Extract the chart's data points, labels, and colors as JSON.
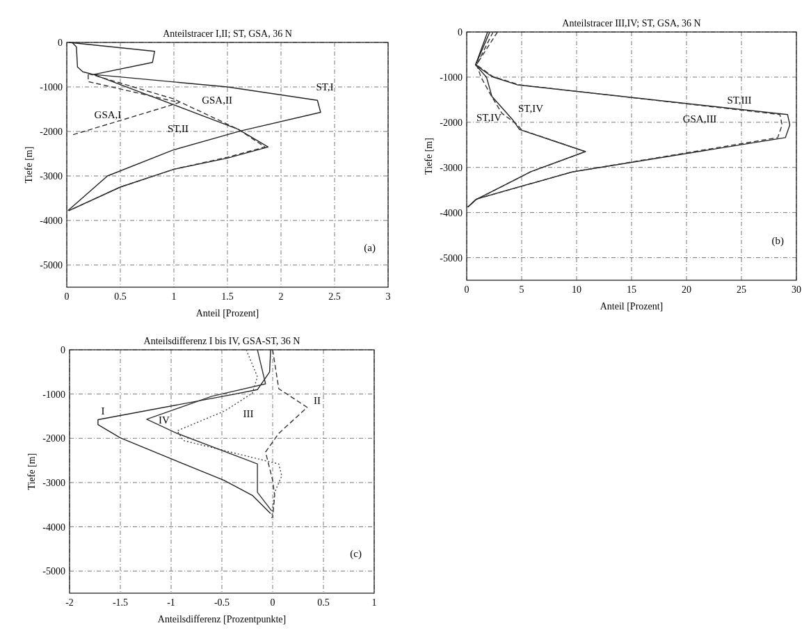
{
  "chart_data": [
    {
      "type": "line",
      "title": "Anteilstracer I,II; ST, GSA, 36 N",
      "xlabel": "Anteil [Prozent]",
      "ylabel": "Tiefe [m]",
      "xlim": [
        0,
        3
      ],
      "xticks": [
        0,
        0.5,
        1,
        1.5,
        2,
        2.5,
        3
      ],
      "ylim": [
        -5500,
        0
      ],
      "yticks": [
        0,
        -1000,
        -2000,
        -3000,
        -4000,
        -5000
      ],
      "grid": true,
      "series": [
        {
          "name": "ST,I",
          "color": "#222222",
          "line_style": "solid",
          "x": [
            0.02,
            0.82,
            0.8,
            0.25,
            1.5,
            2.34,
            2.37,
            1.62,
            0.99,
            0.38,
            0.01
          ],
          "values": [
            0,
            -200,
            -450,
            -720,
            -1000,
            -1300,
            -1570,
            -1990,
            -2420,
            -3000,
            -3780
          ]
        },
        {
          "name": "ST,II",
          "color": "#222222",
          "line_style": "solid",
          "x": [
            0.05,
            0.09,
            0.1,
            0.15,
            0.25,
            1.6,
            1.88,
            1.5,
            1.0,
            0.5,
            0.02
          ],
          "values": [
            0,
            -100,
            -550,
            -660,
            -720,
            -1950,
            -2350,
            -2600,
            -2850,
            -3250,
            -3780
          ]
        },
        {
          "name": "GSA,II",
          "color": "#333333",
          "line_style": "dashed",
          "x": [
            0.2,
            1.0,
            1.05,
            1.6,
            1.85,
            1.5,
            1.0,
            0.5,
            0.02
          ],
          "values": [
            -700,
            -1270,
            -1330,
            -1950,
            -2350,
            -2580,
            -2850,
            -3250,
            -3780
          ]
        },
        {
          "name": "GSA,I",
          "color": "#333333",
          "line_style": "dashed",
          "x": [
            0.2,
            0.2,
            1.05,
            0.85,
            0.05
          ],
          "values": [
            -720,
            -880,
            -1350,
            -1500,
            -2080
          ]
        }
      ],
      "annotations": [
        "(a)"
      ]
    },
    {
      "type": "line",
      "title": "Anteilstracer III,IV; ST, GSA, 36 N",
      "xlabel": "Anteil [Prozent]",
      "ylabel": "Tiefe [m]",
      "xlim": [
        0,
        30
      ],
      "xticks": [
        0,
        5,
        10,
        15,
        20,
        25,
        30
      ],
      "ylim": [
        -5500,
        0
      ],
      "yticks": [
        0,
        -1000,
        -2000,
        -3000,
        -4000,
        -5000
      ],
      "grid": true,
      "series": [
        {
          "name": "ST,III",
          "color": "#222222",
          "line_style": "solid",
          "x": [
            1.9,
            0.8,
            2.3,
            4.6,
            29.2,
            29.4,
            29.0,
            9.6,
            0.9,
            0.1
          ],
          "values": [
            0,
            -730,
            -990,
            -1170,
            -1830,
            -2060,
            -2340,
            -3100,
            -3700,
            -3880
          ]
        },
        {
          "name": "GSA,III",
          "color": "#333333",
          "line_style": "dashed",
          "x": [
            2.4,
            0.9,
            2.4,
            4.8,
            28.5,
            28.7,
            28.3,
            9.6,
            0.9,
            0.1
          ],
          "values": [
            0,
            -730,
            -990,
            -1170,
            -1830,
            -2060,
            -2340,
            -3100,
            -3700,
            -3880
          ]
        },
        {
          "name": "ST,IV",
          "color": "#222222",
          "line_style": "solid",
          "x": [
            2.1,
            0.8,
            1.8,
            2.3,
            4.2,
            4.8,
            10.8,
            5.8,
            0.8,
            0.1
          ],
          "values": [
            0,
            -730,
            -1000,
            -1430,
            -1950,
            -2160,
            -2650,
            -3100,
            -3720,
            -3880
          ]
        },
        {
          "name": "ST,IV",
          "color": "#333333",
          "line_style": "dashed",
          "x": [
            2.8,
            0.9,
            1.3,
            2.2,
            3.2,
            4.6,
            5.0,
            10.8,
            5.8,
            0.8,
            0.1
          ],
          "values": [
            0,
            -720,
            -1000,
            -1400,
            -1800,
            -2050,
            -2170,
            -2650,
            -3100,
            -3720,
            -3880
          ]
        }
      ],
      "annotations": [
        "(b)"
      ]
    },
    {
      "type": "line",
      "title": "Anteilsdifferenz I bis IV, GSA-ST, 36 N",
      "xlabel": "Anteilsdifferenz [Prozentpunkte]",
      "ylabel": "Tiefe [m]",
      "xlim": [
        -2,
        1
      ],
      "xticks": [
        -2,
        -1.5,
        -1,
        -0.5,
        0,
        0.5,
        1
      ],
      "ylim": [
        -5500,
        0
      ],
      "yticks": [
        0,
        -1000,
        -2000,
        -3000,
        -4000,
        -5000
      ],
      "grid": true,
      "series": [
        {
          "name": "I",
          "color": "#222222",
          "line_style": "solid",
          "x": [
            -0.02,
            -0.03,
            -0.15,
            -0.37,
            -1.72,
            -1.72,
            -1.5,
            -0.98,
            -0.48,
            -0.2,
            -0.02
          ],
          "values": [
            0,
            -500,
            -900,
            -1000,
            -1580,
            -1690,
            -1990,
            -2480,
            -2950,
            -3290,
            -3700
          ]
        },
        {
          "name": "II",
          "color": "#333333",
          "line_style": "dashed",
          "x": [
            0,
            0.06,
            0.34,
            0.06,
            -0.07,
            0,
            0.02,
            0
          ],
          "values": [
            0,
            -880,
            -1300,
            -1890,
            -2310,
            -2950,
            -3300,
            -3800
          ]
        },
        {
          "name": "III",
          "color": "#444444",
          "line_style": "dotted",
          "x": [
            -0.26,
            -0.15,
            -0.2,
            -0.47,
            -0.94,
            -0.88,
            0.06,
            0.09,
            0.02,
            -0.01
          ],
          "values": [
            0,
            -610,
            -980,
            -1380,
            -1830,
            -2050,
            -2580,
            -2850,
            -3220,
            -3800
          ]
        },
        {
          "name": "IV",
          "color": "#333333",
          "line_style": "solid",
          "x": [
            -0.15,
            -0.07,
            -0.6,
            -1.24,
            -0.94,
            -0.15,
            -0.15,
            -0.01
          ],
          "values": [
            0,
            -770,
            -1050,
            -1570,
            -1890,
            -2580,
            -3220,
            -3640
          ]
        }
      ],
      "annotations": [
        "(c)"
      ]
    }
  ]
}
